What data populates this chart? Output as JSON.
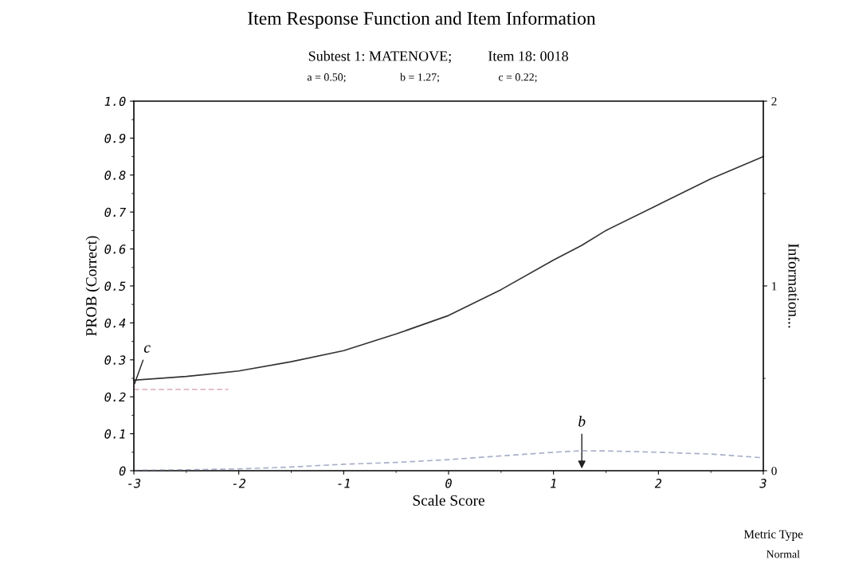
{
  "chart_data": {
    "type": "line",
    "title": "Item Response Function and Item Information",
    "subtitle": "Subtest 1: MATENOVE;          Item 18: 0018",
    "xlabel": "Scale Score",
    "ylabel": "PROB (Correct)",
    "y2label": "Information...",
    "series": [
      {
        "color": "#333333",
        "line_style": "solid",
        "x": [
          -3,
          -2.5,
          -2,
          -1.5,
          -1,
          -0.5,
          0,
          0.5,
          1,
          1.27,
          1.5,
          2,
          2.5,
          3
        ],
        "values": [
          0.245,
          0.255,
          0.27,
          0.295,
          0.325,
          0.37,
          0.42,
          0.49,
          0.57,
          0.61,
          0.65,
          0.72,
          0.79,
          0.85
        ]
      },
      {
        "color": "#e0b8c0",
        "line_style": "dashed",
        "x": [
          -3,
          -2.1
        ],
        "values": [
          0.22,
          0.22
        ]
      },
      {
        "color": "#a8b0c8",
        "line_style": "dashed",
        "axis": "y2",
        "x": [
          -3,
          -2.5,
          -2,
          -1.5,
          -1,
          -0.5,
          0,
          0.5,
          1,
          1.27,
          1.5,
          2,
          2.5,
          3
        ],
        "values": [
          0.002,
          0.005,
          0.01,
          0.02,
          0.035,
          0.045,
          0.06,
          0.08,
          0.1,
          0.108,
          0.107,
          0.1,
          0.09,
          0.07
        ]
      }
    ],
    "xlim": [
      -3,
      3
    ],
    "xticks": [
      -3,
      -2,
      -1,
      0,
      1,
      2,
      3
    ],
    "ylim": [
      0,
      1
    ],
    "yticks": [
      {
        "value": 0,
        "label": "0"
      },
      0.1,
      0.2,
      0.3,
      0.4,
      0.5,
      0.6,
      0.7,
      0.8,
      0.9,
      {
        "value": 1,
        "label": "1.0"
      }
    ],
    "y2lim": [
      0,
      2
    ],
    "y2ticks": [
      0,
      1,
      2
    ],
    "annotations": [
      "a = 0.50;",
      "b = 1.27;",
      "c = 0.22;",
      "Metric Type",
      "Normal",
      "b",
      {
        "text": "c",
        "x": -3,
        "y": 0.23
      }
    ],
    "grid": false,
    "legend": false
  }
}
